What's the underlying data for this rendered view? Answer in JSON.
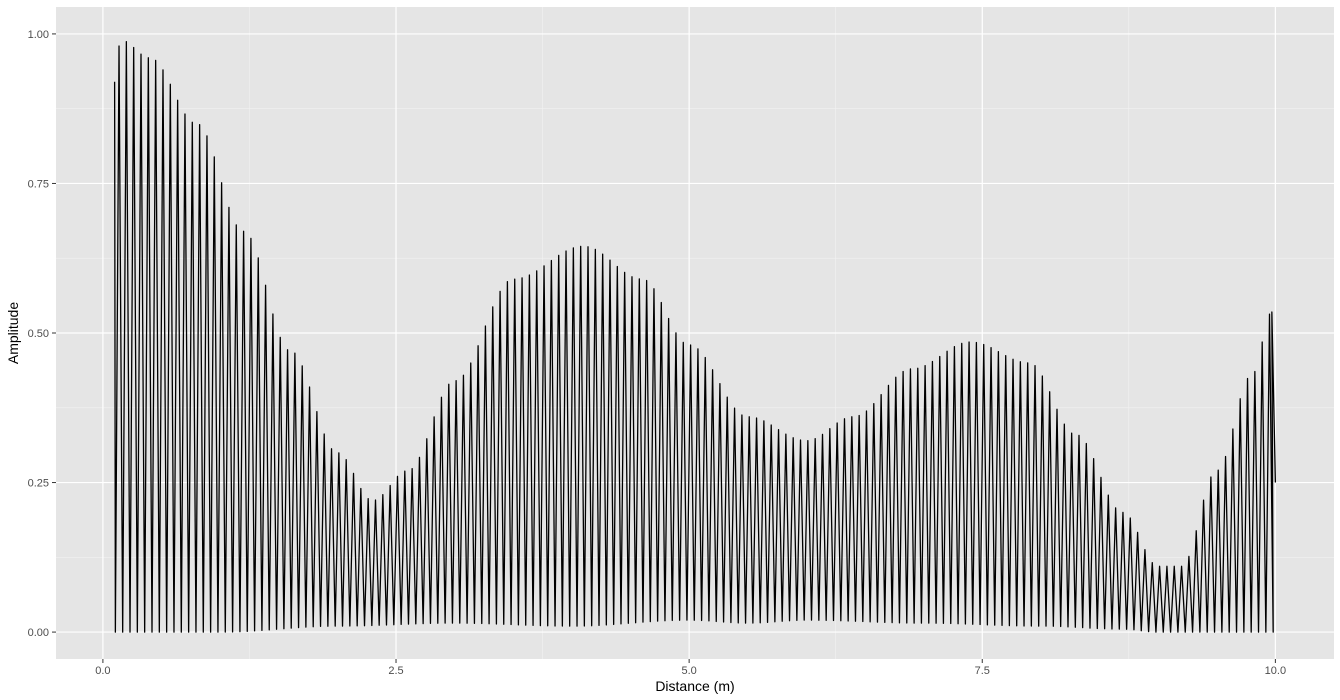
{
  "chart_data": {
    "type": "line",
    "title": "",
    "xlabel": "Distance (m)",
    "ylabel": "Amplitude",
    "xlim": [
      -0.4,
      10.5
    ],
    "ylim": [
      -0.045,
      1.045
    ],
    "x_ticks": [
      0.0,
      2.5,
      5.0,
      7.5,
      10.0
    ],
    "x_tick_labels": [
      "0.0",
      "2.5",
      "5.0",
      "7.5",
      "10.0"
    ],
    "y_ticks": [
      0.0,
      0.25,
      0.5,
      0.75,
      1.0
    ],
    "y_tick_labels": [
      "0.00",
      "0.25",
      "0.50",
      "0.75",
      "1.00"
    ],
    "grid": true,
    "legend": "none",
    "series": [
      {
        "color": "#000000",
        "x_start": 0.1,
        "x_end": 10.0,
        "start_y": 0.92,
        "end_y": 0.25,
        "oscillation_period": 0.0625,
        "envelope_peaks_x": [
          0.1,
          0.15,
          0.4,
          0.8,
          1.2,
          1.6,
          2.0,
          2.3,
          2.6,
          3.0,
          3.5,
          4.1,
          4.6,
          5.0,
          5.5,
          6.0,
          6.4,
          6.9,
          7.4,
          7.9,
          8.3,
          8.7,
          9.0,
          9.2,
          9.5,
          9.8,
          9.97
        ],
        "envelope_peaks_y": [
          0.92,
          0.99,
          0.96,
          0.85,
          0.67,
          0.47,
          0.3,
          0.22,
          0.27,
          0.42,
          0.59,
          0.645,
          0.59,
          0.48,
          0.36,
          0.32,
          0.36,
          0.44,
          0.485,
          0.45,
          0.33,
          0.2,
          0.11,
          0.11,
          0.27,
          0.43,
          0.535
        ],
        "envelope_troughs_x": [
          0.1,
          1.0,
          2.0,
          3.0,
          4.0,
          5.0,
          5.5,
          6.0,
          7.0,
          8.0,
          8.7,
          9.0,
          10.0
        ],
        "envelope_troughs_y": [
          0.0,
          0.0,
          0.01,
          0.015,
          0.01,
          0.02,
          0.015,
          0.02,
          0.015,
          0.01,
          0.005,
          0.0,
          0.0
        ]
      }
    ]
  }
}
